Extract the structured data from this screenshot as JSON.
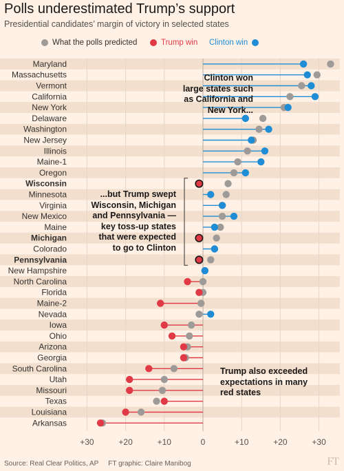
{
  "title": "Polls underestimated Trump’s support",
  "subtitle": "Presidential candidates’ margin of victory in selected states",
  "legend": {
    "polls": "What the polls predicted",
    "trump": "Trump win",
    "clinton": "Clinton win"
  },
  "colors": {
    "clinton": "#1f8dd6",
    "trump": "#e03a47",
    "polls": "#9e9a97",
    "background": "#fff1e5",
    "band": "#f2dfce"
  },
  "annotations": {
    "clinton_large_states": "Clinton won\nlarge states such\nas California and\nNew York...",
    "trump_swept": "...but Trump swept\nWisconsin, Michigan\nand Pennsylvania —\nkey toss-up states\nthat were expected\nto go to Clinton",
    "trump_red_states": "Trump also exceeded\nexpectations in many\nred states"
  },
  "source": "Source: Real Clear Politics, AP",
  "graphic_credit": "FT graphic: Claire Manibog",
  "logo": "FT",
  "chart_data": {
    "type": "scatter",
    "x_axis_note": "negative = Trump margin, positive = Clinton margin",
    "xlim": [
      -31,
      34
    ],
    "xticks": [
      -30,
      -20,
      -10,
      0,
      10,
      20,
      30
    ],
    "xtick_labels": [
      "+30",
      "+20",
      "+10",
      "0",
      "+10",
      "+20",
      "+30"
    ],
    "grid": true,
    "legend_position": "top",
    "states": [
      {
        "name": "Maryland",
        "predicted": 33,
        "actual": 26,
        "winner": "clinton",
        "bold": false
      },
      {
        "name": "Massachusetts",
        "predicted": 29.5,
        "actual": 27,
        "winner": "clinton",
        "bold": false
      },
      {
        "name": "Vermont",
        "predicted": 25.5,
        "actual": 28,
        "winner": "clinton",
        "bold": false
      },
      {
        "name": "California",
        "predicted": 22.5,
        "actual": 29,
        "winner": "clinton",
        "bold": false
      },
      {
        "name": "New York",
        "predicted": 21,
        "actual": 22,
        "winner": "clinton",
        "bold": false
      },
      {
        "name": "Delaware",
        "predicted": 15.5,
        "actual": 11,
        "winner": "clinton",
        "bold": false
      },
      {
        "name": "Washington",
        "predicted": 14.5,
        "actual": 17,
        "winner": "clinton",
        "bold": false
      },
      {
        "name": "New Jersey",
        "predicted": 13,
        "actual": 12.5,
        "winner": "clinton",
        "bold": false
      },
      {
        "name": "Illinois",
        "predicted": 11.5,
        "actual": 16,
        "winner": "clinton",
        "bold": false
      },
      {
        "name": "Maine-1",
        "predicted": 9,
        "actual": 15,
        "winner": "clinton",
        "bold": false
      },
      {
        "name": "Oregon",
        "predicted": 8,
        "actual": 11,
        "winner": "clinton",
        "bold": false
      },
      {
        "name": "Wisconsin",
        "predicted": 6.5,
        "actual": -1,
        "winner": "trump",
        "bold": true
      },
      {
        "name": "Minnesota",
        "predicted": 6,
        "actual": 2,
        "winner": "clinton",
        "bold": false
      },
      {
        "name": "Virginia",
        "predicted": 5,
        "actual": 5,
        "winner": "clinton",
        "bold": false
      },
      {
        "name": "New Mexico",
        "predicted": 5,
        "actual": 8,
        "winner": "clinton",
        "bold": false
      },
      {
        "name": "Maine",
        "predicted": 4.5,
        "actual": 3,
        "winner": "clinton",
        "bold": false
      },
      {
        "name": "Michigan",
        "predicted": 3.5,
        "actual": -1,
        "winner": "trump",
        "bold": true
      },
      {
        "name": "Colorado",
        "predicted": 3,
        "actual": 3,
        "winner": "clinton",
        "bold": false
      },
      {
        "name": "Pennsylvania",
        "predicted": 2,
        "actual": -1,
        "winner": "trump",
        "bold": true
      },
      {
        "name": "New Hampshire",
        "predicted": 0.5,
        "actual": 0.5,
        "winner": "clinton",
        "bold": false
      },
      {
        "name": "North Carolina",
        "predicted": 0,
        "actual": -4,
        "winner": "trump",
        "bold": false
      },
      {
        "name": "Florida",
        "predicted": 0,
        "actual": -1,
        "winner": "trump",
        "bold": false
      },
      {
        "name": "Maine-2",
        "predicted": -0.5,
        "actual": -11,
        "winner": "trump",
        "bold": false
      },
      {
        "name": "Nevada",
        "predicted": -1,
        "actual": 2,
        "winner": "clinton",
        "bold": false
      },
      {
        "name": "Iowa",
        "predicted": -3,
        "actual": -10,
        "winner": "trump",
        "bold": false
      },
      {
        "name": "Ohio",
        "predicted": -3.5,
        "actual": -8,
        "winner": "trump",
        "bold": false
      },
      {
        "name": "Arizona",
        "predicted": -4,
        "actual": -5,
        "winner": "trump",
        "bold": false
      },
      {
        "name": "Georgia",
        "predicted": -4.5,
        "actual": -5,
        "winner": "trump",
        "bold": false
      },
      {
        "name": "South Carolina",
        "predicted": -7.5,
        "actual": -14,
        "winner": "trump",
        "bold": false
      },
      {
        "name": "Utah",
        "predicted": -10,
        "actual": -19,
        "winner": "trump",
        "bold": false
      },
      {
        "name": "Missouri",
        "predicted": -10.5,
        "actual": -19,
        "winner": "trump",
        "bold": false
      },
      {
        "name": "Texas",
        "predicted": -12,
        "actual": -10,
        "winner": "trump",
        "bold": false
      },
      {
        "name": "Louisiana",
        "predicted": -16,
        "actual": -20,
        "winner": "trump",
        "bold": false
      },
      {
        "name": "Arkansas",
        "predicted": -26,
        "actual": -26.5,
        "winner": "trump",
        "bold": false
      }
    ]
  }
}
